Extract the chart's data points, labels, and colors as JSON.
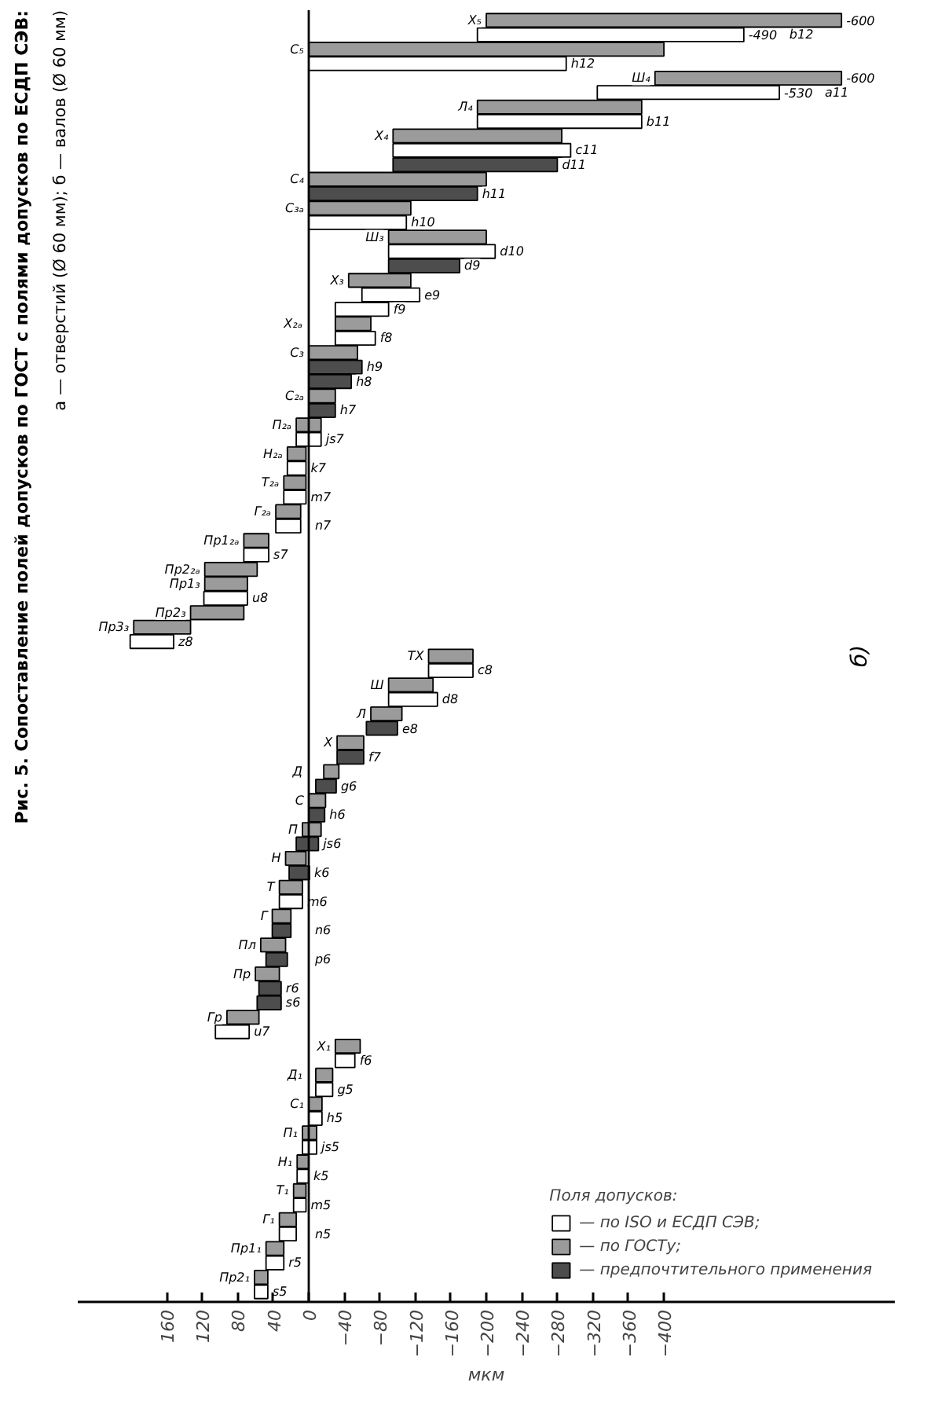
{
  "chart_data": {
    "type": "bar",
    "orientation": "horizontal",
    "title": "Рис. 5. Сопоставление полей допусков по ГОСТ с полями допусков по ЕСДП СЭВ:",
    "subtitle": "а — отверстий (Ø 60 мм); б — валов (Ø 60 мм)",
    "xlabel": "мкм",
    "legend_title": "Поля допусков:",
    "categories": [
      "Х₅",
      "b12",
      "С₅",
      "h12",
      "Ш₄",
      "a11",
      "Л₄",
      "b11",
      "Х₄",
      "c11",
      "d11",
      "С₄",
      "h11",
      "С₃ₐ",
      "h10",
      "Ш₃",
      "d10",
      "d9",
      "Х₃",
      "e9",
      "f9",
      "Х₂ₐ",
      "f8",
      "С₃",
      "h9",
      "h8",
      "С₂ₐ",
      "h7",
      "П₂ₐ",
      "js7",
      "Н₂ₐ",
      "k7",
      "Т₂ₐ",
      "m7",
      "Г₂ₐ",
      "n7",
      "Пр1₂ₐ",
      "s7",
      "Пр2₂ₐ",
      "Пр1₃",
      "u8",
      "Пр2₃",
      "Пр3₃",
      "z8",
      "ТХ",
      "c8",
      "Ш",
      "d8",
      "Л",
      "e8",
      "Х",
      "f7",
      "Д",
      "g6",
      "С",
      "h6",
      "П",
      "js6",
      "Н",
      "k6",
      "Т",
      "m6",
      "Г",
      "n6",
      "Пл",
      "p6",
      "Пр",
      "r6",
      "s6",
      "Гр",
      "u7",
      "Х₁",
      "f6",
      "Д₁",
      "g5",
      "С₁",
      "h5",
      "П₁",
      "js5",
      "Н₁",
      "k5",
      "Т₁",
      "m5",
      "Г₁",
      "n5",
      "Пр1₁",
      "r5",
      "Пр2₁",
      "s5"
    ],
    "series": [
      {
        "name": "— по ISO и ЕСДП СЭВ;",
        "color": "#ffffff",
        "values": [
          null,
          300,
          null,
          290,
          null,
          205,
          null,
          185,
          null,
          200,
          null,
          null,
          null,
          null,
          110,
          null,
          120,
          null,
          null,
          65,
          60,
          null,
          45,
          null,
          null,
          null,
          null,
          null,
          null,
          28,
          null,
          21,
          null,
          25,
          null,
          28,
          null,
          28,
          null,
          null,
          49,
          null,
          null,
          49,
          null,
          50,
          null,
          55,
          null,
          null,
          null,
          null,
          null,
          null,
          null,
          null,
          null,
          null,
          null,
          null,
          null,
          26,
          null,
          null,
          null,
          null,
          null,
          null,
          null,
          null,
          38,
          null,
          22,
          null,
          19,
          null,
          15,
          null,
          16,
          null,
          13,
          null,
          14,
          null,
          19,
          null,
          20,
          null,
          15
        ],
        "base": [
          null,
          -490,
          null,
          -290,
          null,
          -530,
          null,
          -375,
          null,
          -295,
          null,
          null,
          null,
          null,
          -110,
          null,
          -210,
          null,
          null,
          -125,
          -90,
          null,
          -75,
          null,
          null,
          null,
          null,
          null,
          null,
          -14,
          null,
          3,
          null,
          3,
          null,
          9,
          null,
          45,
          null,
          null,
          69,
          null,
          null,
          152,
          null,
          -185,
          null,
          -145,
          null,
          null,
          null,
          null,
          null,
          null,
          null,
          null,
          null,
          null,
          null,
          null,
          null,
          7,
          null,
          null,
          null,
          null,
          null,
          null,
          null,
          null,
          67,
          null,
          -52,
          null,
          -27,
          null,
          -15,
          null,
          -9,
          null,
          0,
          null,
          3,
          null,
          14,
          null,
          28,
          null,
          46
        ]
      },
      {
        "name": "— по ГОСТу;",
        "color": "#9b9b9b",
        "values": [
          400,
          null,
          400,
          null,
          210,
          null,
          185,
          null,
          190,
          null,
          null,
          200,
          null,
          115,
          null,
          110,
          null,
          null,
          70,
          null,
          null,
          40,
          null,
          55,
          null,
          null,
          30,
          null,
          28,
          null,
          21,
          null,
          25,
          null,
          28,
          null,
          28,
          null,
          59,
          48,
          null,
          60,
          64,
          null,
          50,
          null,
          50,
          null,
          35,
          null,
          30,
          null,
          17,
          null,
          19,
          null,
          21,
          null,
          23,
          null,
          26,
          null,
          21,
          null,
          28,
          null,
          27,
          null,
          null,
          36,
          null,
          28,
          null,
          19,
          null,
          15,
          null,
          16,
          null,
          13,
          null,
          14,
          null,
          19,
          null,
          20,
          null,
          15,
          null
        ],
        "base": [
          -600,
          null,
          -400,
          null,
          -600,
          null,
          -375,
          null,
          -285,
          null,
          null,
          -200,
          null,
          -115,
          null,
          -200,
          null,
          null,
          -115,
          null,
          null,
          -70,
          null,
          -55,
          null,
          null,
          -30,
          null,
          -14,
          null,
          3,
          null,
          3,
          null,
          9,
          null,
          45,
          null,
          58,
          69,
          null,
          73,
          133,
          null,
          -185,
          null,
          -140,
          null,
          -105,
          null,
          -62,
          null,
          -34,
          null,
          -19,
          null,
          -14,
          null,
          3,
          null,
          7,
          null,
          20,
          null,
          26,
          null,
          33,
          null,
          null,
          56,
          null,
          -58,
          null,
          -27,
          null,
          -15,
          null,
          -9,
          null,
          0,
          null,
          3,
          null,
          14,
          null,
          28,
          null,
          46,
          null
        ]
      },
      {
        "name": "— предпочтительного применения",
        "color": "#4d4d4d",
        "values": [
          null,
          null,
          null,
          null,
          null,
          null,
          null,
          null,
          null,
          null,
          185,
          null,
          190,
          null,
          null,
          null,
          null,
          80,
          null,
          null,
          null,
          null,
          null,
          null,
          60,
          48,
          null,
          30,
          null,
          null,
          null,
          null,
          null,
          null,
          null,
          null,
          null,
          null,
          null,
          null,
          null,
          null,
          null,
          null,
          null,
          null,
          null,
          null,
          null,
          35,
          null,
          30,
          null,
          23,
          null,
          18,
          null,
          25,
          null,
          23,
          null,
          null,
          null,
          21,
          null,
          24,
          null,
          25,
          27,
          null,
          null,
          null,
          null,
          null,
          null,
          null,
          null,
          null,
          null,
          null,
          null,
          null,
          null,
          null,
          null,
          null,
          null,
          null,
          null
        ],
        "base": [
          null,
          null,
          null,
          null,
          null,
          null,
          null,
          null,
          null,
          null,
          -280,
          null,
          -190,
          null,
          null,
          null,
          null,
          -170,
          null,
          null,
          null,
          null,
          null,
          null,
          -60,
          -48,
          null,
          -30,
          null,
          null,
          null,
          null,
          null,
          null,
          null,
          null,
          null,
          null,
          null,
          null,
          null,
          null,
          null,
          null,
          null,
          null,
          null,
          null,
          null,
          -100,
          null,
          -62,
          null,
          -31,
          null,
          -18,
          null,
          -11,
          null,
          -1,
          null,
          null,
          null,
          20,
          null,
          24,
          null,
          31,
          31,
          null,
          null,
          null,
          null,
          null,
          null,
          null,
          null,
          null,
          null,
          null,
          null,
          null,
          null,
          null,
          null,
          null,
          null,
          null,
          null
        ]
      }
    ],
    "xlim": [
      260,
      -660
    ],
    "xticks": [
      160,
      120,
      80,
      40,
      0,
      -40,
      -80,
      -120,
      -160,
      -200,
      -240,
      -280,
      -320,
      -360,
      -400
    ],
    "legend": "bottom right",
    "annotations": [
      {
        "text": "-600",
        "x": -600,
        "y": "Х₅"
      },
      {
        "text": "-490",
        "x": -490,
        "y": "b12"
      },
      {
        "text": "-600",
        "x": -600,
        "y": "Ш₄"
      },
      {
        "text": "-530",
        "x": -530,
        "y": "a11"
      },
      "б)"
    ]
  }
}
